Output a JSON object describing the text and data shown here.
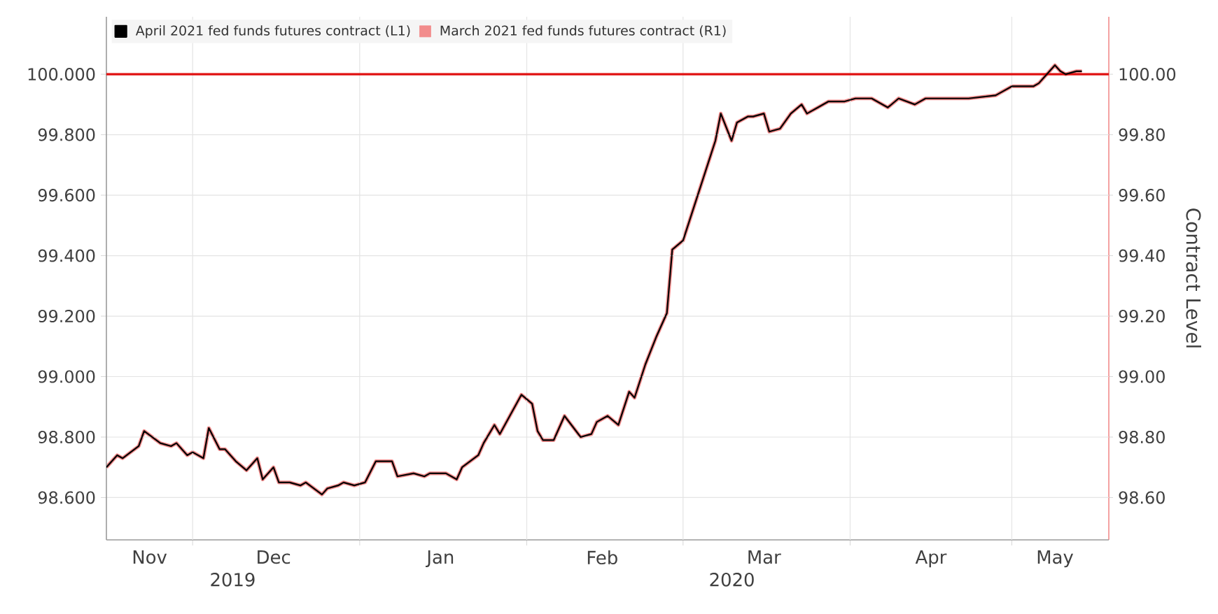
{
  "chart_data": {
    "type": "line",
    "y2label": "Contract Level",
    "annotations": [
      "2019",
      "2020"
    ],
    "x": [
      "2019-11-15",
      "2019-11-17",
      "2019-11-18",
      "2019-11-21",
      "2019-11-22",
      "2019-11-25",
      "2019-11-27",
      "2019-11-28",
      "2019-11-30",
      "2019-12-01",
      "2019-12-03",
      "2019-12-04",
      "2019-12-06",
      "2019-12-07",
      "2019-12-09",
      "2019-12-11",
      "2019-12-13",
      "2019-12-14",
      "2019-12-16",
      "2019-12-17",
      "2019-12-19",
      "2019-12-21",
      "2019-12-22",
      "2019-12-25",
      "2019-12-26",
      "2019-12-28",
      "2019-12-29",
      "2019-12-31",
      "2020-01-02",
      "2020-01-04",
      "2020-01-07",
      "2020-01-08",
      "2020-01-11",
      "2020-01-13",
      "2020-01-14",
      "2020-01-17",
      "2020-01-19",
      "2020-01-20",
      "2020-01-23",
      "2020-01-24",
      "2020-01-26",
      "2020-01-27",
      "2020-01-31",
      "2020-02-02",
      "2020-02-03",
      "2020-02-04",
      "2020-02-06",
      "2020-02-08",
      "2020-02-11",
      "2020-02-13",
      "2020-02-14",
      "2020-02-16",
      "2020-02-18",
      "2020-02-20",
      "2020-02-21",
      "2020-02-23",
      "2020-02-25",
      "2020-02-27",
      "2020-02-28",
      "2020-03-01",
      "2020-03-03",
      "2020-03-07",
      "2020-03-08",
      "2020-03-10",
      "2020-03-11",
      "2020-03-13",
      "2020-03-14",
      "2020-03-16",
      "2020-03-17",
      "2020-03-19",
      "2020-03-21",
      "2020-03-23",
      "2020-03-24",
      "2020-03-26",
      "2020-03-28",
      "2020-03-31",
      "2020-04-02",
      "2020-04-05",
      "2020-04-08",
      "2020-04-10",
      "2020-04-13",
      "2020-04-15",
      "2020-04-19",
      "2020-04-23",
      "2020-04-28",
      "2020-04-29",
      "2020-05-01",
      "2020-05-02",
      "2020-05-05",
      "2020-05-06",
      "2020-05-07",
      "2020-05-09",
      "2020-05-10",
      "2020-05-11",
      "2020-05-13",
      "2020-05-14"
    ],
    "series": [
      {
        "name": "April 2021 fed funds futures contract  (L1)",
        "color": "#000000",
        "values": [
          98.7,
          98.74,
          98.73,
          98.77,
          98.82,
          98.78,
          98.77,
          98.78,
          98.74,
          98.75,
          98.73,
          98.83,
          98.76,
          98.76,
          98.72,
          98.69,
          98.73,
          98.66,
          98.7,
          98.65,
          98.65,
          98.64,
          98.65,
          98.61,
          98.63,
          98.64,
          98.65,
          98.64,
          98.65,
          98.72,
          98.72,
          98.67,
          98.68,
          98.67,
          98.68,
          98.68,
          98.66,
          98.7,
          98.74,
          98.78,
          98.84,
          98.81,
          98.94,
          98.91,
          98.82,
          98.79,
          98.79,
          98.87,
          98.8,
          98.81,
          98.85,
          98.87,
          98.84,
          98.95,
          98.93,
          99.04,
          99.13,
          99.21,
          99.42,
          99.45,
          99.56,
          99.78,
          99.87,
          99.78,
          99.84,
          99.86,
          99.86,
          99.87,
          99.81,
          99.82,
          99.87,
          99.9,
          99.87,
          99.89,
          99.91,
          99.91,
          99.92,
          99.92,
          99.89,
          99.92,
          99.9,
          99.92,
          99.92,
          99.92,
          99.93,
          99.94,
          99.96,
          99.96,
          99.96,
          99.97,
          99.99,
          100.03,
          100.01,
          100.0,
          100.01,
          100.01
        ]
      },
      {
        "name": "March 2021 fed funds futures contract  (R1)",
        "color": "#f28c8c",
        "axis": "y2",
        "values": [
          98.7,
          98.74,
          98.73,
          98.77,
          98.82,
          98.78,
          98.77,
          98.78,
          98.74,
          98.75,
          98.73,
          98.83,
          98.76,
          98.76,
          98.72,
          98.69,
          98.73,
          98.66,
          98.7,
          98.65,
          98.65,
          98.64,
          98.65,
          98.61,
          98.63,
          98.64,
          98.65,
          98.64,
          98.65,
          98.72,
          98.72,
          98.67,
          98.68,
          98.67,
          98.68,
          98.68,
          98.66,
          98.7,
          98.74,
          98.78,
          98.84,
          98.81,
          98.94,
          98.91,
          98.82,
          98.79,
          98.79,
          98.87,
          98.8,
          98.81,
          98.85,
          98.87,
          98.84,
          98.95,
          98.93,
          99.04,
          99.13,
          99.21,
          99.42,
          99.45,
          99.56,
          99.78,
          99.87,
          99.78,
          99.84,
          99.86,
          99.86,
          99.87,
          99.81,
          99.82,
          99.87,
          99.9,
          99.87,
          99.89,
          99.91,
          99.91,
          99.92,
          99.92,
          99.89,
          99.92,
          99.9,
          99.92,
          99.92,
          99.92,
          99.93,
          99.94,
          99.96,
          99.96,
          99.96,
          99.97,
          99.99,
          100.03,
          100.01,
          100.0,
          100.01,
          100.01
        ]
      }
    ],
    "xlim": [
      "2019-11-15",
      "2020-05-19"
    ],
    "xticks": [
      {
        "value": "2019-11-23",
        "label": "Nov"
      },
      {
        "value": "2019-12-01",
        "label": null
      },
      {
        "value": "2019-12-16",
        "label": "Dec"
      },
      {
        "value": "2020-01-01",
        "label": null
      },
      {
        "value": "2020-01-16",
        "label": "Jan"
      },
      {
        "value": "2020-02-01",
        "label": null
      },
      {
        "value": "2020-02-15",
        "label": "Feb"
      },
      {
        "value": "2020-03-01",
        "label": null
      },
      {
        "value": "2020-03-16",
        "label": "Mar"
      },
      {
        "value": "2020-04-01",
        "label": null
      },
      {
        "value": "2020-04-16",
        "label": "Apr"
      },
      {
        "value": "2020-05-01",
        "label": null
      },
      {
        "value": "2020-05-09",
        "label": "May"
      }
    ],
    "ylim": [
      98.46,
      100.19
    ],
    "yticks": [
      {
        "value": 98.6,
        "label": "98.600"
      },
      {
        "value": 98.8,
        "label": "98.800"
      },
      {
        "value": 99.0,
        "label": "99.000"
      },
      {
        "value": 99.2,
        "label": "99.200"
      },
      {
        "value": 99.4,
        "label": "99.400"
      },
      {
        "value": 99.6,
        "label": "99.600"
      },
      {
        "value": 99.8,
        "label": "99.800"
      },
      {
        "value": 100.0,
        "label": "100.000"
      }
    ],
    "y2lim": [
      98.46,
      100.19
    ],
    "y2ticks": [
      {
        "value": 98.6,
        "label": "98.60"
      },
      {
        "value": 98.8,
        "label": "98.80"
      },
      {
        "value": 99.0,
        "label": "99.00"
      },
      {
        "value": 99.2,
        "label": "99.20"
      },
      {
        "value": 99.4,
        "label": "99.40"
      },
      {
        "value": 99.6,
        "label": "99.60"
      },
      {
        "value": 99.8,
        "label": "99.80"
      },
      {
        "value": 100.0,
        "label": "100.00"
      }
    ],
    "ref_lines": [
      {
        "axis": "y",
        "value": 100.0,
        "color": "#e01010"
      }
    ],
    "grid": true,
    "legend": "top left"
  }
}
